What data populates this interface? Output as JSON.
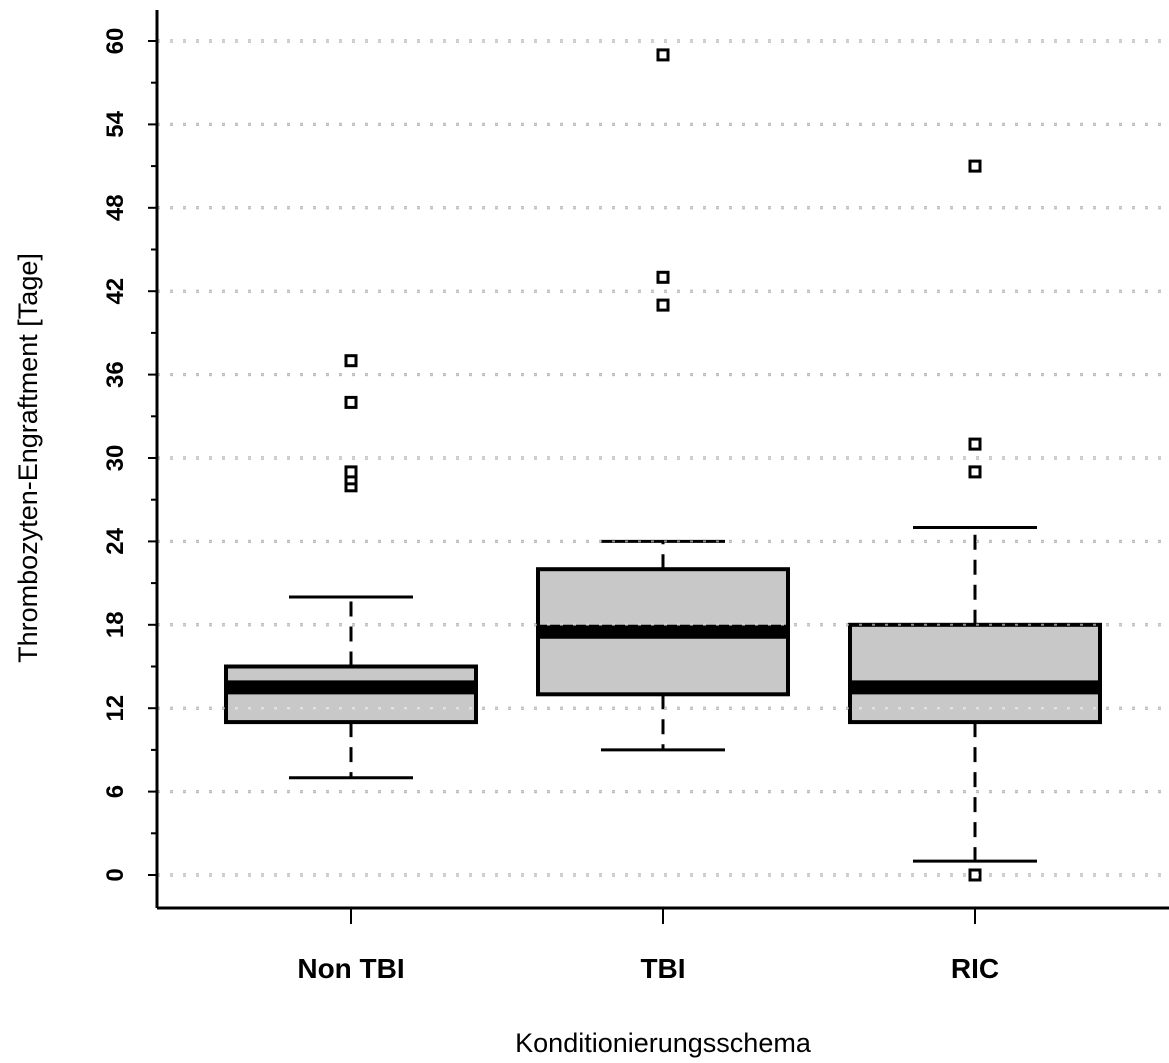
{
  "chart_data": {
    "type": "boxplot",
    "xlabel": "Konditionierungsschema",
    "ylabel": "Thrombozyten-Engraftment [Tage]",
    "ylim": [
      -2.4,
      62
    ],
    "yticks": [
      0,
      6,
      12,
      18,
      24,
      30,
      36,
      42,
      48,
      54,
      60
    ],
    "grid": "horizontal-dotted",
    "box_fill": "#c8c8c8",
    "categories": [
      "Non TBI",
      "TBI",
      "RIC"
    ],
    "boxes": [
      {
        "category": "Non TBI",
        "whisker_low": 7,
        "q1": 11,
        "median": 13.5,
        "q3": 15,
        "whisker_high": 20,
        "outliers": [
          28,
          28.5,
          29,
          34,
          37
        ]
      },
      {
        "category": "TBI",
        "whisker_low": 9,
        "q1": 13,
        "median": 17.5,
        "q3": 22,
        "whisker_high": 24,
        "outliers": [
          41,
          43,
          59
        ]
      },
      {
        "category": "RIC",
        "whisker_low": 1,
        "q1": 11,
        "median": 13.5,
        "q3": 18,
        "whisker_high": 25,
        "outliers": [
          0,
          29,
          31,
          51
        ]
      }
    ]
  }
}
